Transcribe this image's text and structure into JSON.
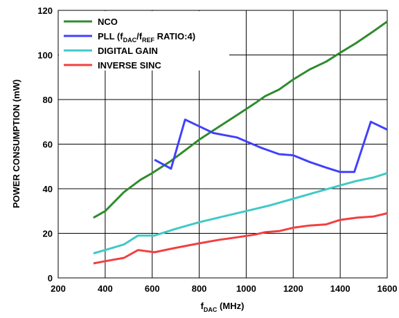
{
  "chart_data": {
    "type": "line",
    "xlabel": {
      "main": "f",
      "sub": "DAC",
      "unit": " (MHz)"
    },
    "ylabel": "POWER CONSUMPTION (mW)",
    "xlim": [
      200,
      1600
    ],
    "ylim": [
      0,
      120
    ],
    "xticks": [
      200,
      400,
      600,
      800,
      1000,
      1200,
      1400,
      1600
    ],
    "yticks": [
      0,
      20,
      40,
      60,
      80,
      100,
      120
    ],
    "grid": true,
    "legend_position": "top-left",
    "series": [
      {
        "name": "NCO",
        "color": "#2e8b2e",
        "x": [
          350,
          400,
          480,
          550,
          600,
          680,
          750,
          800,
          880,
          960,
          1040,
          1080,
          1140,
          1200,
          1270,
          1340,
          1400,
          1470,
          1540,
          1600
        ],
        "y": [
          27,
          30,
          38.5,
          44,
          47,
          52.5,
          58,
          62,
          67.5,
          73,
          78.5,
          81.5,
          84.5,
          89,
          93.5,
          97,
          101,
          105.5,
          110.5,
          115
        ]
      },
      {
        "name": "PLL (f_DAC/f_REF RATIO:4)",
        "label_parts": [
          "PLL (f",
          "DAC",
          "/f",
          "REF",
          " RATIO:4)"
        ],
        "color": "#4040ff",
        "x": [
          610,
          680,
          740,
          800,
          860,
          960,
          1060,
          1140,
          1200,
          1270,
          1340,
          1400,
          1460,
          1530,
          1600
        ],
        "y": [
          53,
          49,
          71,
          68,
          65,
          63,
          58.5,
          55.5,
          55,
          52,
          49.5,
          47.5,
          47.5,
          70,
          66.5
        ]
      },
      {
        "name": "DIGITAL GAIN",
        "color": "#40c8c8",
        "x": [
          350,
          400,
          480,
          540,
          610,
          700,
          800,
          900,
          1000,
          1100,
          1200,
          1300,
          1400,
          1470,
          1540,
          1600
        ],
        "y": [
          11,
          12.5,
          15,
          19,
          19,
          22,
          25,
          27.5,
          30,
          32.5,
          35.5,
          38.5,
          41.5,
          43.5,
          45,
          47
        ]
      },
      {
        "name": "INVERSE SINC",
        "color": "#f04040",
        "x": [
          350,
          400,
          480,
          540,
          610,
          700,
          800,
          880,
          960,
          1040,
          1080,
          1140,
          1200,
          1270,
          1340,
          1400,
          1470,
          1540,
          1600
        ],
        "y": [
          6.5,
          7.5,
          9,
          12.5,
          11.5,
          13.5,
          15.5,
          17,
          18.2,
          19.5,
          20.5,
          21,
          22.5,
          23.5,
          24,
          26,
          27,
          27.5,
          29
        ]
      }
    ]
  }
}
